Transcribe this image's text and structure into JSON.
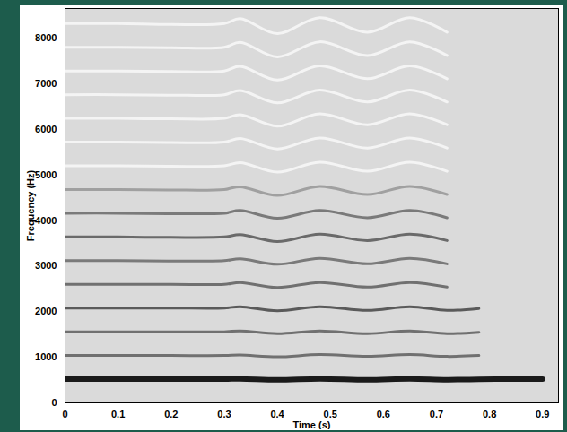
{
  "chart_data": {
    "type": "line",
    "x_label": "Time (s)",
    "y_label": "Frequency (Hz)",
    "xlim": [
      0,
      0.93
    ],
    "ylim": [
      0,
      8650
    ],
    "xticks": [
      0,
      0.1,
      0.2,
      0.3,
      0.4,
      0.5,
      0.6,
      0.7,
      0.8,
      0.9
    ],
    "yticks": [
      0,
      1000,
      2000,
      3000,
      4000,
      5000,
      6000,
      7000,
      8000
    ],
    "x": [
      0,
      0.1,
      0.2,
      0.3,
      0.33,
      0.4,
      0.48,
      0.57,
      0.65,
      0.72,
      0.78,
      0.85,
      0.9
    ],
    "series": [
      {
        "color": "#1a1a1a",
        "values": [
          520,
          520,
          519,
          520,
          527,
          506,
          528,
          508,
          528,
          508,
          518,
          520,
          520
        ]
      },
      {
        "color": "#707070",
        "values": [
          1040,
          1040,
          1040,
          1040,
          1050,
          1010,
          1060,
          1020,
          1060,
          1020,
          1040,
          null,
          null
        ]
      },
      {
        "color": "#707070",
        "values": [
          1560,
          1560,
          1560,
          1560,
          1580,
          1520,
          1580,
          1520,
          1580,
          1520,
          1550,
          null,
          null
        ]
      },
      {
        "color": "#5a5a5a",
        "values": [
          2080,
          2080,
          2080,
          2080,
          2110,
          2020,
          2110,
          2030,
          2110,
          2030,
          2070,
          null,
          null
        ]
      },
      {
        "color": "#707070",
        "values": [
          2600,
          2600,
          2600,
          2600,
          2640,
          2530,
          2640,
          2540,
          2640,
          2540,
          null,
          null,
          null
        ]
      },
      {
        "color": "#7a7a7a",
        "values": [
          3120,
          3120,
          3110,
          3120,
          3160,
          3040,
          3170,
          3050,
          3170,
          3050,
          null,
          null,
          null
        ]
      },
      {
        "color": "#6a6a6a",
        "values": [
          3640,
          3640,
          3630,
          3640,
          3690,
          3540,
          3700,
          3560,
          3700,
          3560,
          null,
          null,
          null
        ]
      },
      {
        "color": "#7a7a7a",
        "values": [
          4160,
          4160,
          4150,
          4160,
          4220,
          4050,
          4220,
          4060,
          4220,
          4060,
          null,
          null,
          null
        ]
      },
      {
        "color": "#a0a0a0",
        "values": [
          4680,
          4680,
          4670,
          4680,
          4740,
          4550,
          4750,
          4570,
          4750,
          4570,
          null,
          null,
          null
        ]
      },
      {
        "color": "#f4f4f4",
        "values": [
          5200,
          5200,
          5190,
          5200,
          5270,
          5060,
          5280,
          5080,
          5280,
          5080,
          null,
          null,
          null
        ]
      },
      {
        "color": "#f4f4f4",
        "values": [
          5720,
          5720,
          5710,
          5720,
          5800,
          5570,
          5810,
          5590,
          5810,
          5590,
          null,
          null,
          null
        ]
      },
      {
        "color": "#f4f4f4",
        "values": [
          6240,
          6240,
          6230,
          6240,
          6320,
          6070,
          6340,
          6100,
          6340,
          6100,
          null,
          null,
          null
        ]
      },
      {
        "color": "#f4f4f4",
        "values": [
          6760,
          6760,
          6750,
          6760,
          6850,
          6580,
          6860,
          6600,
          6860,
          6600,
          null,
          null,
          null
        ]
      },
      {
        "color": "#f4f4f4",
        "values": [
          7280,
          7280,
          7270,
          7280,
          7380,
          7080,
          7390,
          7110,
          7390,
          7110,
          null,
          null,
          null
        ]
      },
      {
        "color": "#f4f4f4",
        "values": [
          7800,
          7800,
          7790,
          7800,
          7910,
          7590,
          7920,
          7620,
          7920,
          7620,
          null,
          null,
          null
        ]
      },
      {
        "color": "#f4f4f4",
        "values": [
          8320,
          8320,
          8300,
          8320,
          8430,
          8100,
          8450,
          8130,
          8450,
          8130,
          null,
          null,
          null
        ]
      }
    ]
  }
}
